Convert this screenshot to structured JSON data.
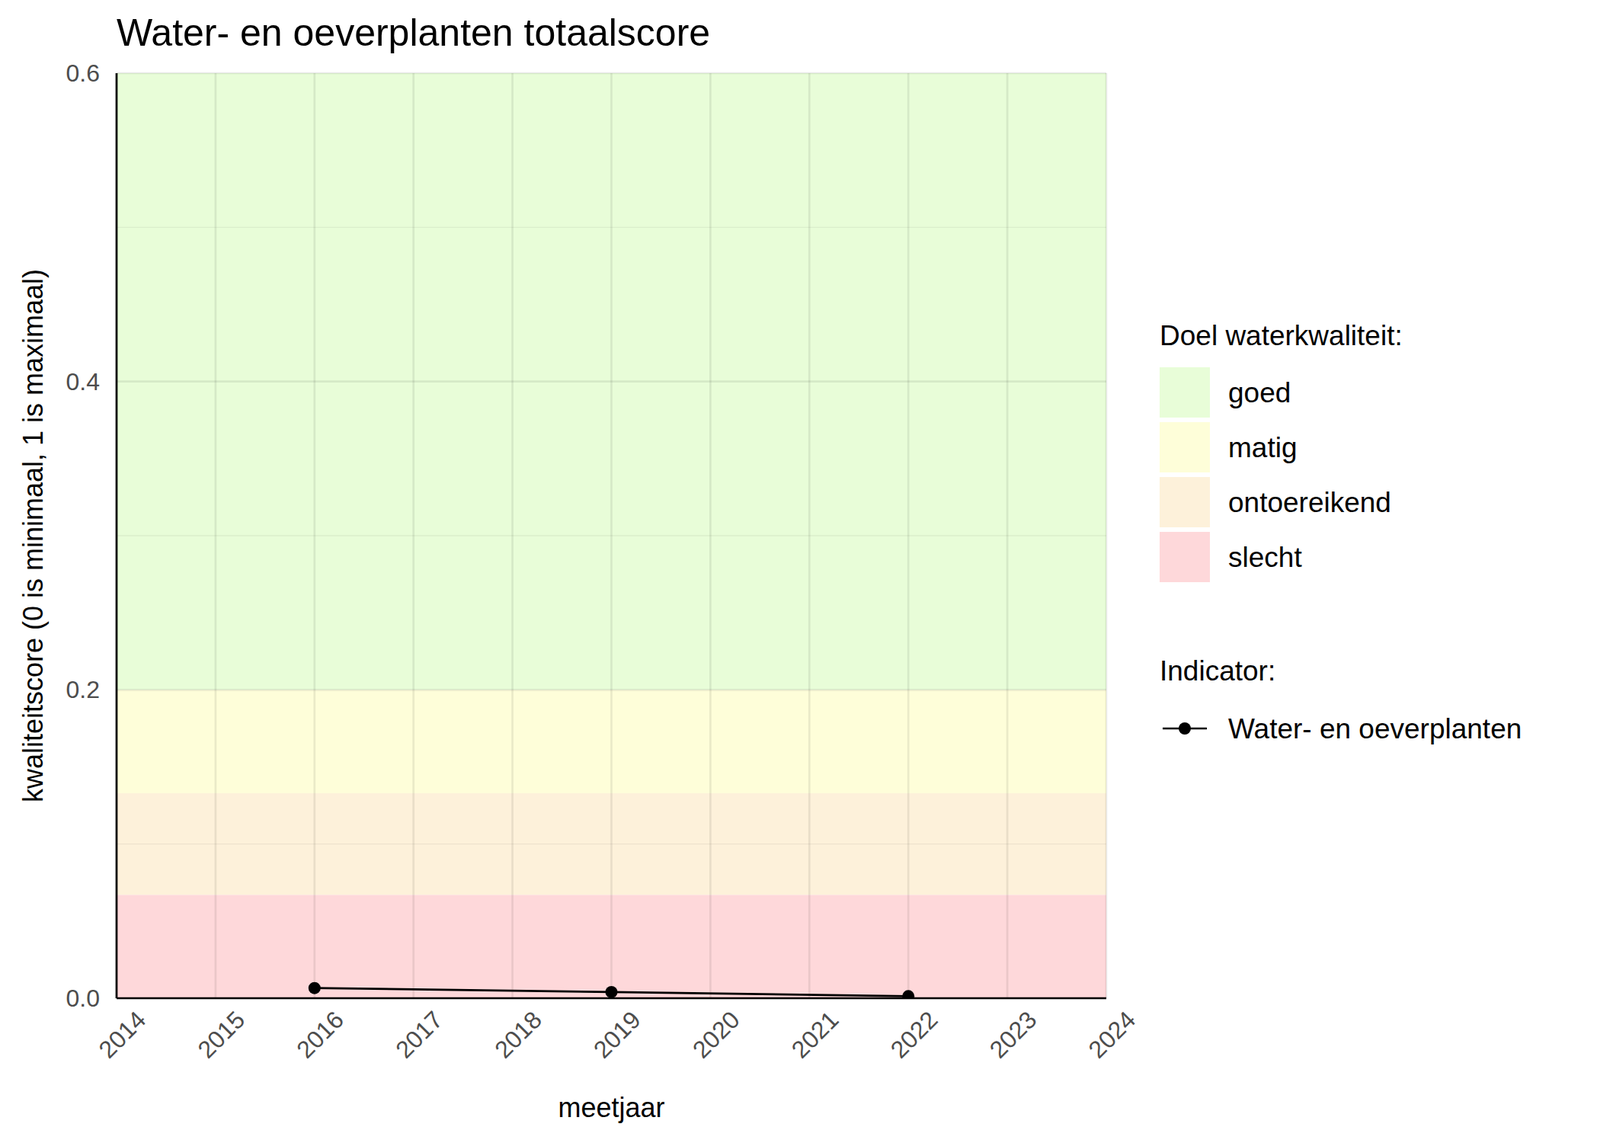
{
  "chart_data": {
    "type": "line",
    "title": "Water- en oeverplanten totaalscore",
    "x_label": "meetjaar",
    "y_label": "kwaliteitscore (0 is minimaal, 1 is maximaal)",
    "x": [
      2016,
      2019,
      2022
    ],
    "series": [
      {
        "name": "Water- en oeverplanten",
        "color": "#000000",
        "values": [
          0.0066,
          0.004,
          0.0013
        ],
        "marker": "circle",
        "line_style": "solid"
      }
    ],
    "xlim": [
      2014,
      2024
    ],
    "xticks": [
      2014,
      2015,
      2016,
      2017,
      2018,
      2019,
      2020,
      2021,
      2022,
      2023,
      2024
    ],
    "ylim": [
      0,
      0.6
    ],
    "yticks": [
      {
        "value": 0,
        "label": "0.0"
      },
      0.2,
      0.4,
      0.6
    ],
    "yminor_ticks": [
      0.1,
      0.3,
      0.5
    ],
    "grid": true,
    "legend": "right",
    "band_legend_title": "Doel waterkwaliteit:",
    "series_legend_title": "Indicator:",
    "bands": [
      {
        "name": "goed",
        "from": 0.2,
        "to": 0.6,
        "color": "#e8fdd8"
      },
      {
        "name": "matig",
        "from": 0.133,
        "to": 0.2,
        "color": "#fefed9"
      },
      {
        "name": "ontoereikend",
        "from": 0.067,
        "to": 0.133,
        "color": "#fdf1da"
      },
      {
        "name": "slecht",
        "from": 0,
        "to": 0.067,
        "color": "#fed8da"
      }
    ]
  }
}
